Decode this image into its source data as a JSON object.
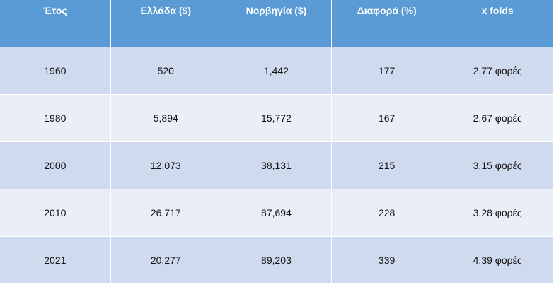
{
  "table": {
    "headers": [
      "Έτος",
      "Ελλάδα ($)",
      "Νορβηγία ($)",
      "Διαφορά (%)",
      "x folds"
    ],
    "rows": [
      [
        "1960",
        "520",
        "1,442",
        "177",
        "2.77 φορές"
      ],
      [
        "1980",
        "5,894",
        "15,772",
        "167",
        "2.67 φορές"
      ],
      [
        "2000",
        "12,073",
        "38,131",
        "215",
        "3.15 φορές"
      ],
      [
        "2010",
        "26,717",
        "87,694",
        "228",
        "3.28 φορές"
      ],
      [
        "2021",
        "20,277",
        "89,203",
        "339",
        "4.39 φορές"
      ]
    ]
  },
  "colors": {
    "header_bg": "#5b9bd5",
    "row_dark": "#cfdaee",
    "row_light": "#e9eef7"
  }
}
